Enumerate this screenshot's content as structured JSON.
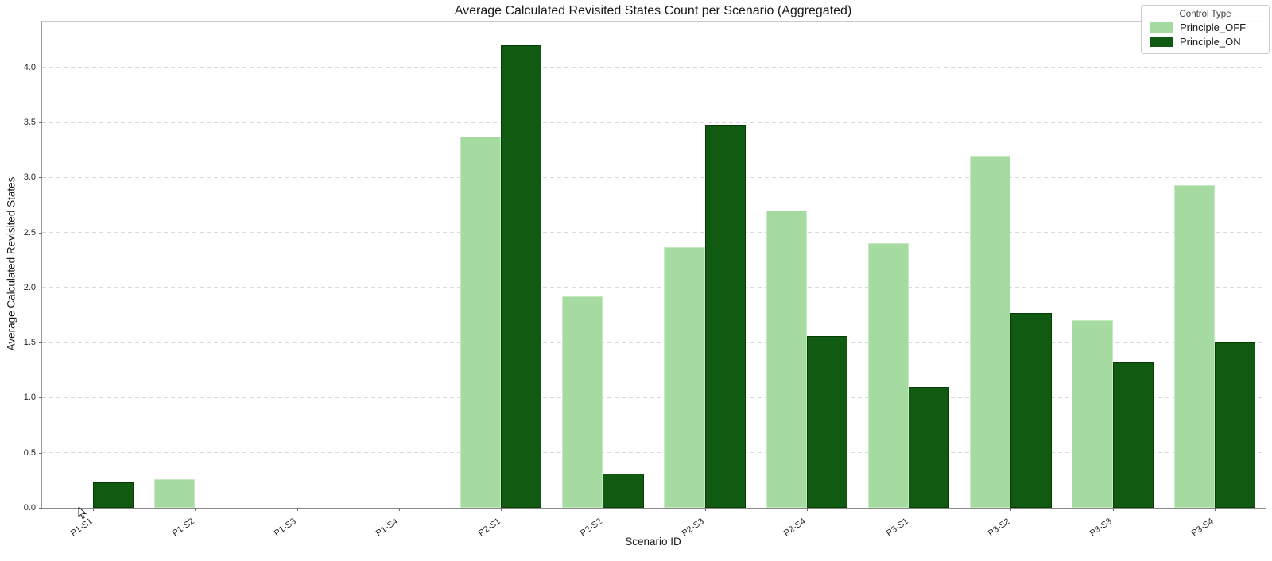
{
  "chart_data": {
    "type": "bar",
    "title": "Average Calculated Revisited States Count per Scenario (Aggregated)",
    "xlabel": "Scenario ID",
    "ylabel": "Average Calculated Revisited States",
    "categories": [
      "P1-S1",
      "P1-S2",
      "P1-S3",
      "P1-S4",
      "P2-S1",
      "P2-S2",
      "P2-S3",
      "P2-S4",
      "P3-S1",
      "P3-S2",
      "P3-S3",
      "P3-S4"
    ],
    "series": [
      {
        "name": "Principle_OFF",
        "color": "#a5dba0",
        "edge": "#c8eac2",
        "values": [
          0,
          0.26,
          0,
          0,
          3.37,
          1.92,
          2.37,
          2.7,
          2.4,
          3.2,
          1.7,
          2.93
        ]
      },
      {
        "name": "Principle_ON",
        "color": "#115a11",
        "edge": "#073c07",
        "values": [
          0.23,
          0,
          0,
          0,
          4.2,
          0.31,
          3.48,
          1.56,
          1.1,
          1.77,
          1.32,
          1.5
        ]
      }
    ],
    "ylim": [
      0,
      4.41
    ],
    "yticks": [
      0.0,
      0.5,
      1.0,
      1.5,
      2.0,
      2.5,
      3.0,
      3.5,
      4.0
    ],
    "ytick_labels": [
      "0.0",
      "0.5",
      "1.0",
      "1.5",
      "2.0",
      "2.5",
      "3.0",
      "3.5",
      "4.0"
    ],
    "grid": "horizontal-dashed",
    "grid_color": "#dadada",
    "legend": {
      "title": "Control Type",
      "position": "top-right"
    },
    "bar_group_fraction": 0.8,
    "x_label_rotation_deg": 35
  },
  "icons": {
    "cursor": "mouse-pointer-arrow"
  }
}
